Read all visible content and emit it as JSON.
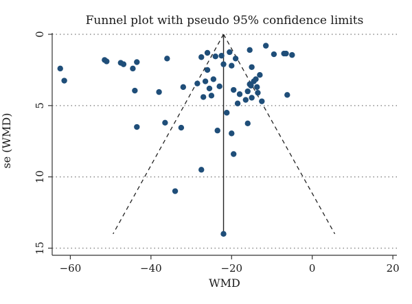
{
  "chart_data": {
    "type": "scatter",
    "title": "Funnel plot with pseudo 95% confidence limits",
    "xlabel": "WMD",
    "ylabel": "se (WMD)",
    "xlim": [
      -64.5,
      21
    ],
    "ylim": [
      0,
      15.5
    ],
    "y_reversed": true,
    "x_ticks": [
      -60,
      -40,
      -20,
      0,
      20
    ],
    "y_ticks": [
      0,
      5,
      10,
      15
    ],
    "grid": "horizontal dotted at y ticks",
    "marker_color": "#1f4e79",
    "pooled_estimate": -22,
    "limit_lines": [
      {
        "x1": -22,
        "y1": 0,
        "x2": -49.4,
        "y2": 14
      },
      {
        "x1": -22,
        "y1": 0,
        "x2": 5.6,
        "y2": 14
      }
    ],
    "points": [
      {
        "x": -62.5,
        "y": 2.4
      },
      {
        "x": -61.5,
        "y": 3.25
      },
      {
        "x": -51.5,
        "y": 1.8
      },
      {
        "x": -51,
        "y": 1.9
      },
      {
        "x": -47.5,
        "y": 2.0
      },
      {
        "x": -46.8,
        "y": 2.1
      },
      {
        "x": -44.5,
        "y": 2.4
      },
      {
        "x": -43.5,
        "y": 1.95
      },
      {
        "x": -44,
        "y": 3.95
      },
      {
        "x": -43.5,
        "y": 6.5
      },
      {
        "x": -38,
        "y": 4.05
      },
      {
        "x": -36.5,
        "y": 6.2
      },
      {
        "x": -36,
        "y": 1.7
      },
      {
        "x": -34,
        "y": 11.0
      },
      {
        "x": -32.5,
        "y": 6.55
      },
      {
        "x": -32,
        "y": 3.7
      },
      {
        "x": -28.5,
        "y": 3.45
      },
      {
        "x": -27.5,
        "y": 1.6
      },
      {
        "x": -27.5,
        "y": 9.5
      },
      {
        "x": -27,
        "y": 4.4
      },
      {
        "x": -26.5,
        "y": 3.3
      },
      {
        "x": -26,
        "y": 1.3
      },
      {
        "x": -26,
        "y": 2.5
      },
      {
        "x": -25.5,
        "y": 3.8
      },
      {
        "x": -25,
        "y": 4.3
      },
      {
        "x": -24.5,
        "y": 3.15
      },
      {
        "x": -24,
        "y": 1.55
      },
      {
        "x": -23.5,
        "y": 6.75
      },
      {
        "x": -23,
        "y": 3.65
      },
      {
        "x": -22.5,
        "y": 1.5
      },
      {
        "x": -22,
        "y": 2.1
      },
      {
        "x": -22,
        "y": 14.0
      },
      {
        "x": -21.2,
        "y": 5.5
      },
      {
        "x": -20.5,
        "y": 1.25
      },
      {
        "x": -20,
        "y": 2.2
      },
      {
        "x": -20,
        "y": 6.95
      },
      {
        "x": -19.5,
        "y": 3.9
      },
      {
        "x": -19.5,
        "y": 8.4
      },
      {
        "x": -19,
        "y": 1.7
      },
      {
        "x": -18.5,
        "y": 4.85
      },
      {
        "x": -18,
        "y": 4.2
      },
      {
        "x": -16.5,
        "y": 4.6
      },
      {
        "x": -16,
        "y": 6.25
      },
      {
        "x": -16,
        "y": 4.0
      },
      {
        "x": -15.5,
        "y": 1.1
      },
      {
        "x": -15.5,
        "y": 3.5
      },
      {
        "x": -15.2,
        "y": 3.6
      },
      {
        "x": -15,
        "y": 2.3
      },
      {
        "x": -15,
        "y": 4.45
      },
      {
        "x": -14.5,
        "y": 3.3
      },
      {
        "x": -14,
        "y": 3.15
      },
      {
        "x": -13.7,
        "y": 3.7
      },
      {
        "x": -13.5,
        "y": 4.1
      },
      {
        "x": -13,
        "y": 2.85
      },
      {
        "x": -12.5,
        "y": 4.7
      },
      {
        "x": -11.5,
        "y": 0.8
      },
      {
        "x": -9.5,
        "y": 1.4
      },
      {
        "x": -7,
        "y": 1.35
      },
      {
        "x": -6.5,
        "y": 1.35
      },
      {
        "x": -6.2,
        "y": 4.25
      },
      {
        "x": -5,
        "y": 1.45
      }
    ]
  }
}
